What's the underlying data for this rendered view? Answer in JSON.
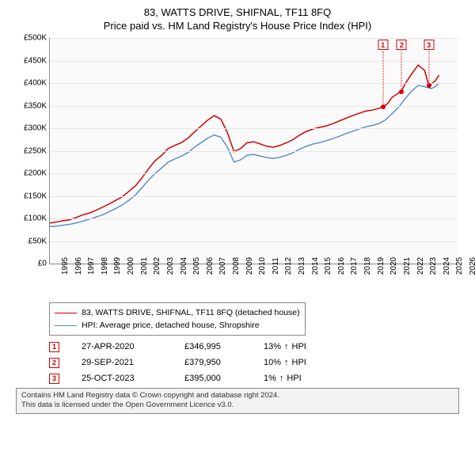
{
  "title": "83, WATTS DRIVE, SHIFNAL, TF11 8FQ",
  "subtitle": "Price paid vs. HM Land Registry's House Price Index (HPI)",
  "chart": {
    "type": "line",
    "background_color": "#fafafa",
    "grid_color": "#e6e6e6",
    "axis_color": "#888888",
    "x": {
      "min": 1995,
      "max": 2026,
      "ticks": [
        1995,
        1996,
        1997,
        1998,
        1999,
        2000,
        2001,
        2002,
        2003,
        2004,
        2005,
        2006,
        2007,
        2008,
        2009,
        2010,
        2011,
        2012,
        2013,
        2014,
        2015,
        2016,
        2017,
        2018,
        2019,
        2020,
        2021,
        2022,
        2023,
        2024,
        2025,
        2026
      ],
      "label_fontsize": 10
    },
    "y": {
      "min": 0,
      "max": 500000,
      "ticks": [
        0,
        50000,
        100000,
        150000,
        200000,
        250000,
        300000,
        350000,
        400000,
        450000,
        500000
      ],
      "tick_labels": [
        "£0",
        "£50K",
        "£100K",
        "£150K",
        "£200K",
        "£250K",
        "£300K",
        "£350K",
        "£400K",
        "£450K",
        "£500K"
      ],
      "label_fontsize": 10
    },
    "series": [
      {
        "name": "83, WATTS DRIVE, SHIFNAL, TF11 8FQ (detached house)",
        "color": "#d40000",
        "line_width": 1.5,
        "x": [
          1995,
          1995.5,
          1996,
          1996.5,
          1997,
          1997.5,
          1998,
          1998.5,
          1999,
          1999.5,
          2000,
          2000.5,
          2001,
          2001.5,
          2002,
          2002.5,
          2003,
          2003.5,
          2004,
          2004.5,
          2005,
          2005.5,
          2006,
          2006.5,
          2007,
          2007.5,
          2008,
          2008.5,
          2009,
          2009.5,
          2010,
          2010.5,
          2011,
          2011.5,
          2012,
          2012.5,
          2013,
          2013.5,
          2014,
          2014.5,
          2015,
          2015.5,
          2016,
          2016.5,
          2017,
          2017.5,
          2018,
          2018.5,
          2019,
          2019.5,
          2020,
          2020.3,
          2020.7,
          2021,
          2021.5,
          2021.7,
          2022,
          2022.5,
          2023,
          2023.5,
          2023.8,
          2024,
          2024.3,
          2024.6
        ],
        "y": [
          90000,
          92000,
          95000,
          97000,
          102000,
          108000,
          112000,
          118000,
          125000,
          132000,
          140000,
          148000,
          160000,
          172000,
          190000,
          210000,
          228000,
          240000,
          255000,
          262000,
          268000,
          278000,
          292000,
          305000,
          318000,
          328000,
          320000,
          290000,
          248000,
          255000,
          268000,
          270000,
          265000,
          260000,
          258000,
          262000,
          268000,
          275000,
          285000,
          293000,
          298000,
          302000,
          305000,
          310000,
          316000,
          322000,
          328000,
          333000,
          338000,
          340000,
          344000,
          346995,
          355000,
          368000,
          378000,
          379950,
          398000,
          420000,
          440000,
          428000,
          395000,
          398000,
          405000,
          418000
        ]
      },
      {
        "name": "HPI: Average price, detached house, Shropshire",
        "color": "#5588cc",
        "line_width": 1.4,
        "x": [
          1995,
          1995.5,
          1996,
          1996.5,
          1997,
          1997.5,
          1998,
          1998.5,
          1999,
          1999.5,
          2000,
          2000.5,
          2001,
          2001.5,
          2002,
          2002.5,
          2003,
          2003.5,
          2004,
          2004.5,
          2005,
          2005.5,
          2006,
          2006.5,
          2007,
          2007.5,
          2008,
          2008.5,
          2009,
          2009.5,
          2010,
          2010.5,
          2011,
          2011.5,
          2012,
          2012.5,
          2013,
          2013.5,
          2014,
          2014.5,
          2015,
          2015.5,
          2016,
          2016.5,
          2017,
          2017.5,
          2018,
          2018.5,
          2019,
          2019.5,
          2020,
          2020.5,
          2021,
          2021.5,
          2022,
          2022.5,
          2023,
          2023.5,
          2024,
          2024.3,
          2024.6
        ],
        "y": [
          82000,
          83000,
          85000,
          87000,
          90000,
          94000,
          98000,
          103000,
          108000,
          115000,
          122000,
          130000,
          140000,
          152000,
          168000,
          185000,
          200000,
          212000,
          225000,
          232000,
          238000,
          246000,
          258000,
          268000,
          278000,
          285000,
          280000,
          258000,
          225000,
          230000,
          240000,
          242000,
          238000,
          235000,
          233000,
          236000,
          240000,
          246000,
          254000,
          260000,
          265000,
          268000,
          272000,
          277000,
          282000,
          288000,
          293000,
          298000,
          303000,
          306000,
          310000,
          318000,
          332000,
          346000,
          365000,
          382000,
          395000,
          392000,
          388000,
          392000,
          400000
        ]
      }
    ],
    "markers": [
      {
        "index": "1",
        "date": "27-APR-2020",
        "x": 2020.32,
        "price": 346995,
        "price_label": "£346,995",
        "pct": "13%",
        "direction": "up",
        "hpi_label": "HPI"
      },
      {
        "index": "2",
        "date": "29-SEP-2021",
        "x": 2021.75,
        "price": 379950,
        "price_label": "£379,950",
        "pct": "10%",
        "direction": "up",
        "hpi_label": "HPI"
      },
      {
        "index": "3",
        "date": "25-OCT-2023",
        "x": 2023.82,
        "price": 395000,
        "price_label": "£395,000",
        "pct": "1%",
        "direction": "up",
        "hpi_label": "HPI"
      }
    ]
  },
  "legend": {
    "border_color": "#888888",
    "fontsize": 10.5
  },
  "footer": {
    "line1": "Contains HM Land Registry data © Crown copyright and database right 2024.",
    "line2": "This data is licensed under the Open Government Licence v3.0.",
    "background_color": "#f2f2f2",
    "border_color": "#888888",
    "fontsize": 9.5
  }
}
